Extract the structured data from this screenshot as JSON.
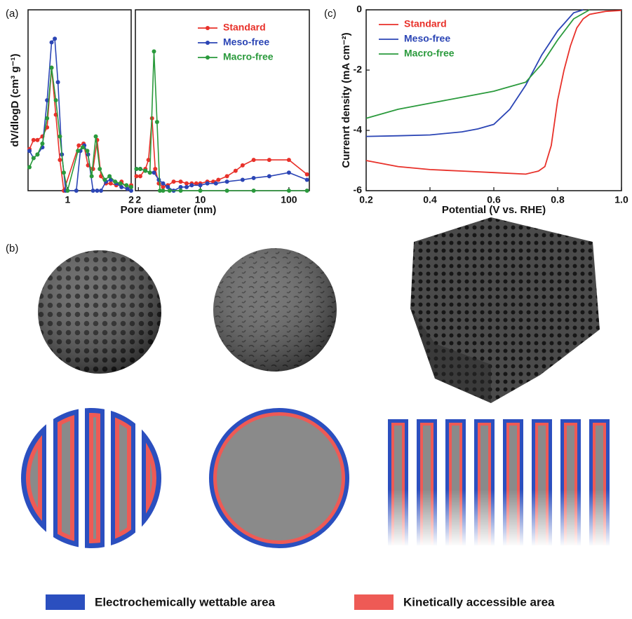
{
  "panel_labels": [
    "(a)",
    "(b)",
    "(c)"
  ],
  "chart_data": [
    {
      "type": "line",
      "xscale": "log",
      "markers": true,
      "ylabel": "dV/dlogD (cm³ g⁻¹)",
      "xlabel": "Pore diameter (nm)",
      "xlim": [
        0.65,
        2
      ],
      "ylim": [
        0,
        1
      ],
      "xticks": [
        1,
        2
      ],
      "series": [
        {
          "color": "#e8312a",
          "x": [
            0.66,
            0.69,
            0.72,
            0.76,
            0.8,
            0.84,
            0.88,
            0.92,
            0.96,
            1.13,
            1.19,
            1.25,
            1.32,
            1.38,
            1.44,
            1.52,
            1.6,
            1.7,
            1.8,
            1.92,
            2.0
          ],
          "values": [
            0.23,
            0.28,
            0.28,
            0.3,
            0.35,
            0.68,
            0.42,
            0.17,
            0.0,
            0.25,
            0.26,
            0.14,
            0.12,
            0.28,
            0.08,
            0.04,
            0.04,
            0.03,
            0.05,
            0.01,
            0.03
          ]
        },
        {
          "color": "#2b45b5",
          "x": [
            0.66,
            0.69,
            0.72,
            0.76,
            0.8,
            0.84,
            0.87,
            0.9,
            0.94,
            0.98,
            1.1,
            1.15,
            1.2,
            1.25,
            1.32,
            1.38,
            1.44,
            1.52,
            1.6,
            1.7,
            1.8,
            1.92,
            2.0
          ],
          "values": [
            0.22,
            0.18,
            0.2,
            0.24,
            0.5,
            0.82,
            0.84,
            0.6,
            0.2,
            0.0,
            0.0,
            0.22,
            0.25,
            0.2,
            0.0,
            0.0,
            0.0,
            0.05,
            0.06,
            0.04,
            0.02,
            0.01,
            0.0
          ]
        },
        {
          "color": "#2a9a3c",
          "x": [
            0.66,
            0.69,
            0.72,
            0.76,
            0.8,
            0.84,
            0.88,
            0.92,
            0.96,
            1.0,
            1.12,
            1.18,
            1.24,
            1.3,
            1.36,
            1.42,
            1.5,
            1.58,
            1.68,
            1.78,
            1.9,
            2.0
          ],
          "values": [
            0.13,
            0.18,
            0.2,
            0.26,
            0.4,
            0.68,
            0.5,
            0.3,
            0.1,
            0.0,
            0.22,
            0.24,
            0.22,
            0.08,
            0.3,
            0.12,
            0.06,
            0.08,
            0.05,
            0.04,
            0.03,
            0.02
          ]
        }
      ]
    },
    {
      "type": "line",
      "xscale": "log",
      "markers": true,
      "legend": "upper right",
      "xlim": [
        1.85,
        170
      ],
      "ylim": [
        0,
        1
      ],
      "xticks": [
        2,
        10,
        100
      ],
      "series": [
        {
          "name": "Standard",
          "color": "#e8312a",
          "x": [
            1.9,
            2.1,
            2.4,
            2.6,
            2.85,
            3.1,
            3.4,
            3.8,
            4.3,
            5,
            6,
            7,
            8,
            9,
            10,
            12,
            14,
            16,
            20,
            25,
            30,
            40,
            60,
            100,
            160
          ],
          "values": [
            0.08,
            0.08,
            0.12,
            0.17,
            0.4,
            0.12,
            0.04,
            0.02,
            0.03,
            0.05,
            0.05,
            0.04,
            0.04,
            0.04,
            0.04,
            0.05,
            0.05,
            0.06,
            0.08,
            0.11,
            0.14,
            0.17,
            0.17,
            0.17,
            0.09
          ]
        },
        {
          "name": "Meso-free",
          "color": "#2b45b5",
          "x": [
            1.9,
            2.1,
            2.4,
            2.7,
            3,
            3.4,
            3.8,
            4.3,
            5,
            6,
            7,
            8,
            10,
            12,
            15,
            20,
            30,
            40,
            60,
            100,
            160
          ],
          "values": [
            0.12,
            0.12,
            0.11,
            0.1,
            0.1,
            0.06,
            0.04,
            0.02,
            0.0,
            0.02,
            0.02,
            0.03,
            0.03,
            0.04,
            0.04,
            0.05,
            0.06,
            0.07,
            0.08,
            0.1,
            0.06
          ]
        },
        {
          "name": "Macro-free",
          "color": "#2a9a3c",
          "x": [
            1.9,
            2.1,
            2.4,
            2.7,
            3.0,
            3.25,
            3.5,
            3.8,
            4.5,
            6,
            10,
            20,
            40,
            100,
            160
          ],
          "values": [
            0.12,
            0.12,
            0.11,
            0.1,
            0.77,
            0.38,
            0.0,
            0.0,
            0.0,
            0.0,
            0.0,
            0.0,
            0.0,
            0.0,
            0.0
          ]
        }
      ]
    },
    {
      "type": "line",
      "markers": false,
      "legend": "upper left",
      "ylabel": "Currenrt density (mA cm⁻²)",
      "xlabel": "Potential (V vs. RHE)",
      "xlim": [
        0.2,
        1.0
      ],
      "ylim": [
        -6,
        0
      ],
      "xticks": [
        0.2,
        0.4,
        0.6,
        0.8,
        {
          "value": 1.0,
          "label": "1.0"
        }
      ],
      "yticks": [
        0,
        -2,
        -4,
        -6
      ],
      "series": [
        {
          "name": "Standard",
          "color": "#e8312a",
          "x": [
            0.2,
            0.3,
            0.4,
            0.5,
            0.6,
            0.7,
            0.74,
            0.76,
            0.78,
            0.8,
            0.82,
            0.84,
            0.86,
            0.88,
            0.9,
            0.95,
            1.0
          ],
          "values": [
            -5.0,
            -5.2,
            -5.3,
            -5.35,
            -5.4,
            -5.45,
            -5.35,
            -5.2,
            -4.5,
            -3.0,
            -2.0,
            -1.2,
            -0.6,
            -0.3,
            -0.15,
            -0.05,
            -0.02
          ]
        },
        {
          "name": "Meso-free",
          "color": "#2b45b5",
          "x": [
            0.2,
            0.3,
            0.4,
            0.5,
            0.55,
            0.6,
            0.65,
            0.7,
            0.75,
            0.8,
            0.85,
            0.88
          ],
          "values": [
            -4.2,
            -4.18,
            -4.15,
            -4.05,
            -3.95,
            -3.8,
            -3.3,
            -2.5,
            -1.5,
            -0.7,
            -0.1,
            0
          ]
        },
        {
          "name": "Macro-free",
          "color": "#2a9a3c",
          "x": [
            0.2,
            0.3,
            0.4,
            0.5,
            0.6,
            0.65,
            0.7,
            0.75,
            0.8,
            0.85,
            0.9
          ],
          "values": [
            -3.6,
            -3.3,
            -3.1,
            -2.9,
            -2.7,
            -2.55,
            -2.4,
            -1.8,
            -1.0,
            -0.3,
            0
          ]
        }
      ]
    }
  ],
  "legend": [
    {
      "label": "Electrochemically wettable area",
      "color": "#2b4fbf"
    },
    {
      "label": "Kinetically accessible area",
      "color": "#ee5a55"
    }
  ]
}
